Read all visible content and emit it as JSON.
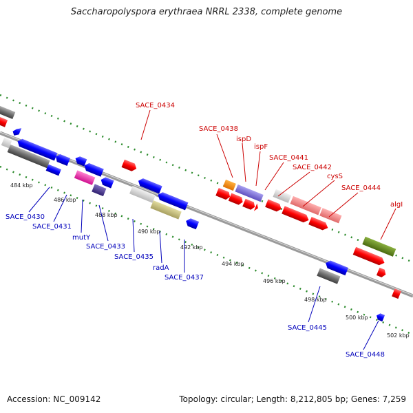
{
  "title": "Saccharopolyspora erythraea NRRL 2338, complete genome",
  "footer": {
    "accession": "Accession: NC_009142",
    "summary": "Topology: circular; Length: 8,212,805 bp; Genes: 7,259"
  },
  "colors": {
    "forward_gene": "#ff0000",
    "reverse_gene": "#0000ff",
    "backbone": "#888888",
    "tick_marks": "#2a8a2a",
    "label_forward": "#cc0000",
    "label_reverse": "#0000bb"
  },
  "axis_labels": [
    "484 kbp",
    "486 kbp",
    "488 kbp",
    "490 kbp",
    "492 kbp",
    "494 kbp",
    "496 kbp",
    "498 kbp",
    "500 kbp",
    "502 kbp"
  ],
  "forward_labels": [
    "SACE_0434",
    "SACE_0438",
    "ispD",
    "ispF",
    "SACE_0441",
    "SACE_0442",
    "cysS",
    "SACE_0444",
    "algI"
  ],
  "reverse_labels": [
    "SACE_0430",
    "SACE_0431",
    "mutY",
    "SACE_0433",
    "SACE_0435",
    "radA",
    "SACE_0437",
    "SACE_0445",
    "SACE_0448"
  ]
}
